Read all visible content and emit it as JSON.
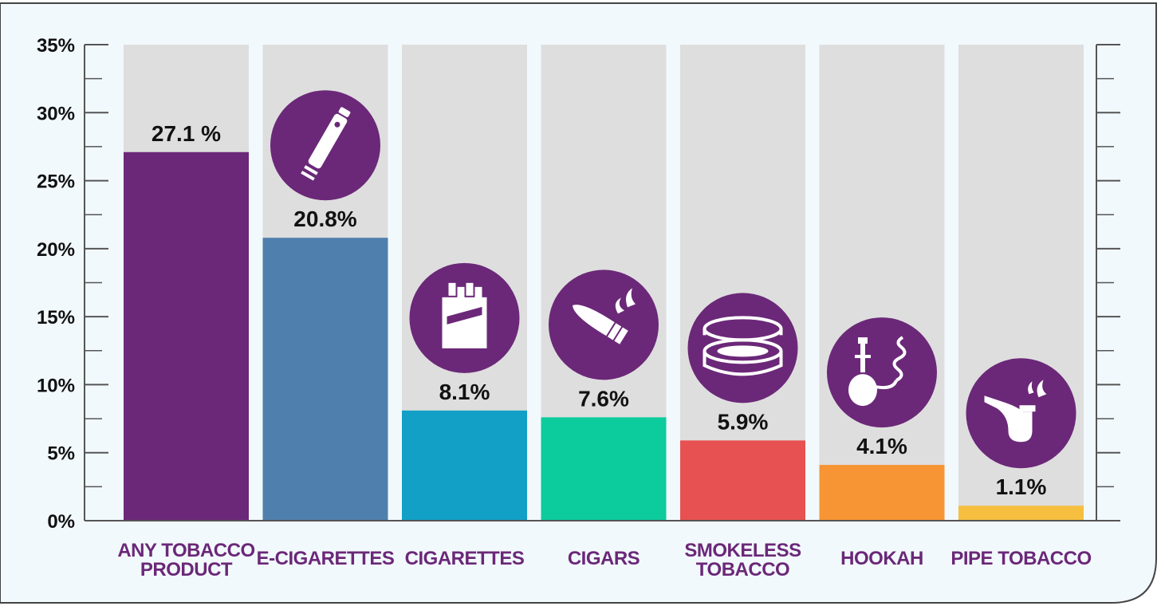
{
  "colors": {
    "background": "#f2f9fd",
    "track": "#dedede",
    "icon_circle": "#6b2878",
    "category_text": "#6b2878",
    "axis": "#555555"
  },
  "chart_data": {
    "type": "bar",
    "title": "",
    "xlabel": "",
    "ylabel": "",
    "ylim": [
      0,
      35
    ],
    "yticks": [
      "0%",
      "5%",
      "10%",
      "15%",
      "20%",
      "25%",
      "30%",
      "35%"
    ],
    "grid": false,
    "categories": [
      {
        "name": "any-tobacco",
        "lines": [
          "ANY TOBACCO",
          "PRODUCT"
        ],
        "value": 27.1,
        "label": "27.1 %",
        "color": "#6b2878",
        "icon": null
      },
      {
        "name": "e-cigarettes",
        "lines": [
          "E-CIGARETTES"
        ],
        "value": 20.8,
        "label": "20.8%",
        "color": "#4f7fac",
        "icon": "e-cigarette-icon"
      },
      {
        "name": "cigarettes",
        "lines": [
          "CIGARETTES"
        ],
        "value": 8.1,
        "label": "8.1%",
        "color": "#12a0c6",
        "icon": "cigarette-pack-icon"
      },
      {
        "name": "cigars",
        "lines": [
          "CIGARS"
        ],
        "value": 7.6,
        "label": "7.6%",
        "color": "#0ccb9c",
        "icon": "cigar-icon"
      },
      {
        "name": "smokeless-tobacco",
        "lines": [
          "SMOKELESS",
          "TOBACCO"
        ],
        "value": 5.9,
        "label": "5.9%",
        "color": "#e85151",
        "icon": "tobacco-tin-icon"
      },
      {
        "name": "hookah",
        "lines": [
          "HOOKAH"
        ],
        "value": 4.1,
        "label": "4.1%",
        "color": "#f79433",
        "icon": "hookah-icon"
      },
      {
        "name": "pipe-tobacco",
        "lines": [
          "PIPE TOBACCO"
        ],
        "value": 1.1,
        "label": "1.1%",
        "color": "#f6bf3f",
        "icon": "pipe-icon"
      }
    ]
  }
}
